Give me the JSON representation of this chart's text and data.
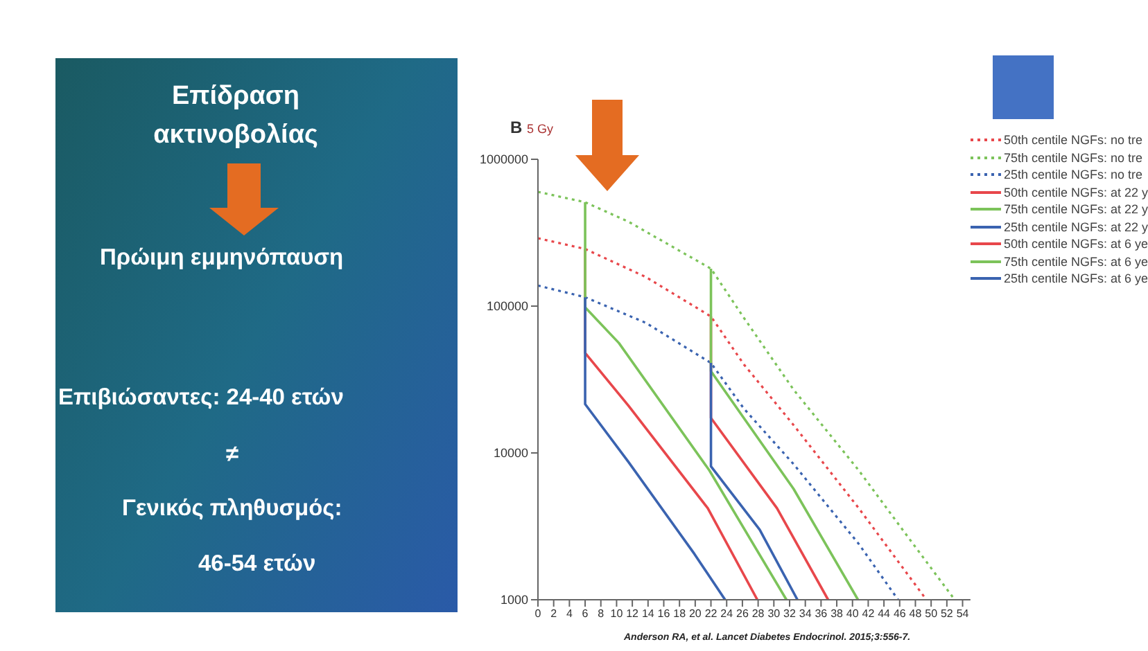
{
  "chart_data": [
    {
      "type": "other",
      "title": "Επίδραση ακτινοβολίας",
      "annotations": [
        "Πρώιμη εμμηνόπαυση",
        "Επιβιώσαντες: 24-40 ετών",
        "≠",
        "Γενικός πληθυσμός:",
        "46-54 ετών"
      ]
    },
    {
      "type": "line",
      "title": "B",
      "subtitle": "5 Gy",
      "log": "y",
      "xlim": [
        0,
        55
      ],
      "xticks": [
        0,
        2,
        4,
        6,
        8,
        10,
        12,
        14,
        16,
        18,
        20,
        22,
        24,
        26,
        28,
        30,
        32,
        34,
        36,
        38,
        40,
        42,
        44,
        46,
        48,
        50,
        52,
        54
      ],
      "ylim": [
        1000,
        1000000
      ],
      "yticks": [
        1000,
        10000,
        100000,
        1000000
      ],
      "grid": false,
      "legend": "top right",
      "marker": "none",
      "series": [
        {
          "name": "50th centile NGFs: no tre",
          "color": "#e8474b",
          "line_style": "dotted",
          "x": [
            0,
            6,
            13.7,
            22,
            26.2,
            32.5,
            40.8,
            49.4
          ],
          "values": [
            290000,
            245000,
            158000,
            85000,
            40000,
            15500,
            4200,
            1000
          ]
        },
        {
          "name": "75th centile NGFs: no tre",
          "color": "#7cc35a",
          "line_style": "dotted",
          "x": [
            0,
            6,
            11.5,
            22,
            26.2,
            32.5,
            40.8,
            47,
            53
          ],
          "values": [
            600000,
            510000,
            376000,
            180000,
            83000,
            27000,
            7600,
            2700,
            1000
          ]
        },
        {
          "name": "25th centile NGFs: no tre",
          "color": "#3a63b0",
          "line_style": "dotted",
          "x": [
            0,
            6,
            13.7,
            22,
            26.2,
            32.5,
            40.8,
            45.8
          ],
          "values": [
            138000,
            115000,
            77000,
            41000,
            20000,
            8400,
            2400,
            1000
          ]
        },
        {
          "name": "50th centile NGFs: at 22 y",
          "color": "#e8474b",
          "line_style": "solid",
          "x": [
            22,
            22,
            30.4,
            36.9
          ],
          "values": [
            85000,
            17300,
            4200,
            1000
          ]
        },
        {
          "name": "75th centile NGFs: at 22 y",
          "color": "#7cc35a",
          "line_style": "solid",
          "x": [
            22,
            22,
            32.5,
            40.7
          ],
          "values": [
            180000,
            36000,
            5700,
            1000
          ]
        },
        {
          "name": "25th centile NGFs: at 22 y",
          "color": "#3a63b0",
          "line_style": "solid",
          "x": [
            22,
            22,
            28.2,
            33
          ],
          "values": [
            41000,
            8100,
            3000,
            1000
          ]
        },
        {
          "name": "50th centile NGFs: at 6 ye",
          "color": "#e8474b",
          "line_style": "solid",
          "x": [
            6,
            6,
            11.5,
            21.6,
            27.9
          ],
          "values": [
            245000,
            48000,
            21000,
            4200,
            1000
          ]
        },
        {
          "name": "75th centile NGFs: at 6 ye",
          "color": "#7cc35a",
          "line_style": "solid",
          "x": [
            6,
            6,
            10.3,
            21.8,
            31.6
          ],
          "values": [
            510000,
            98000,
            56000,
            7600,
            1000
          ]
        },
        {
          "name": "25th centile NGFs: at 6 ye",
          "color": "#3a63b0",
          "line_style": "solid",
          "x": [
            6,
            6,
            11.5,
            19.9,
            23.8
          ],
          "values": [
            115000,
            21500,
            8700,
            2050,
            1000
          ]
        }
      ],
      "annotations": [
        "Anderson RA, et al. Lancet Diabetes Endocrinol. 2015;3:556-7."
      ]
    }
  ]
}
